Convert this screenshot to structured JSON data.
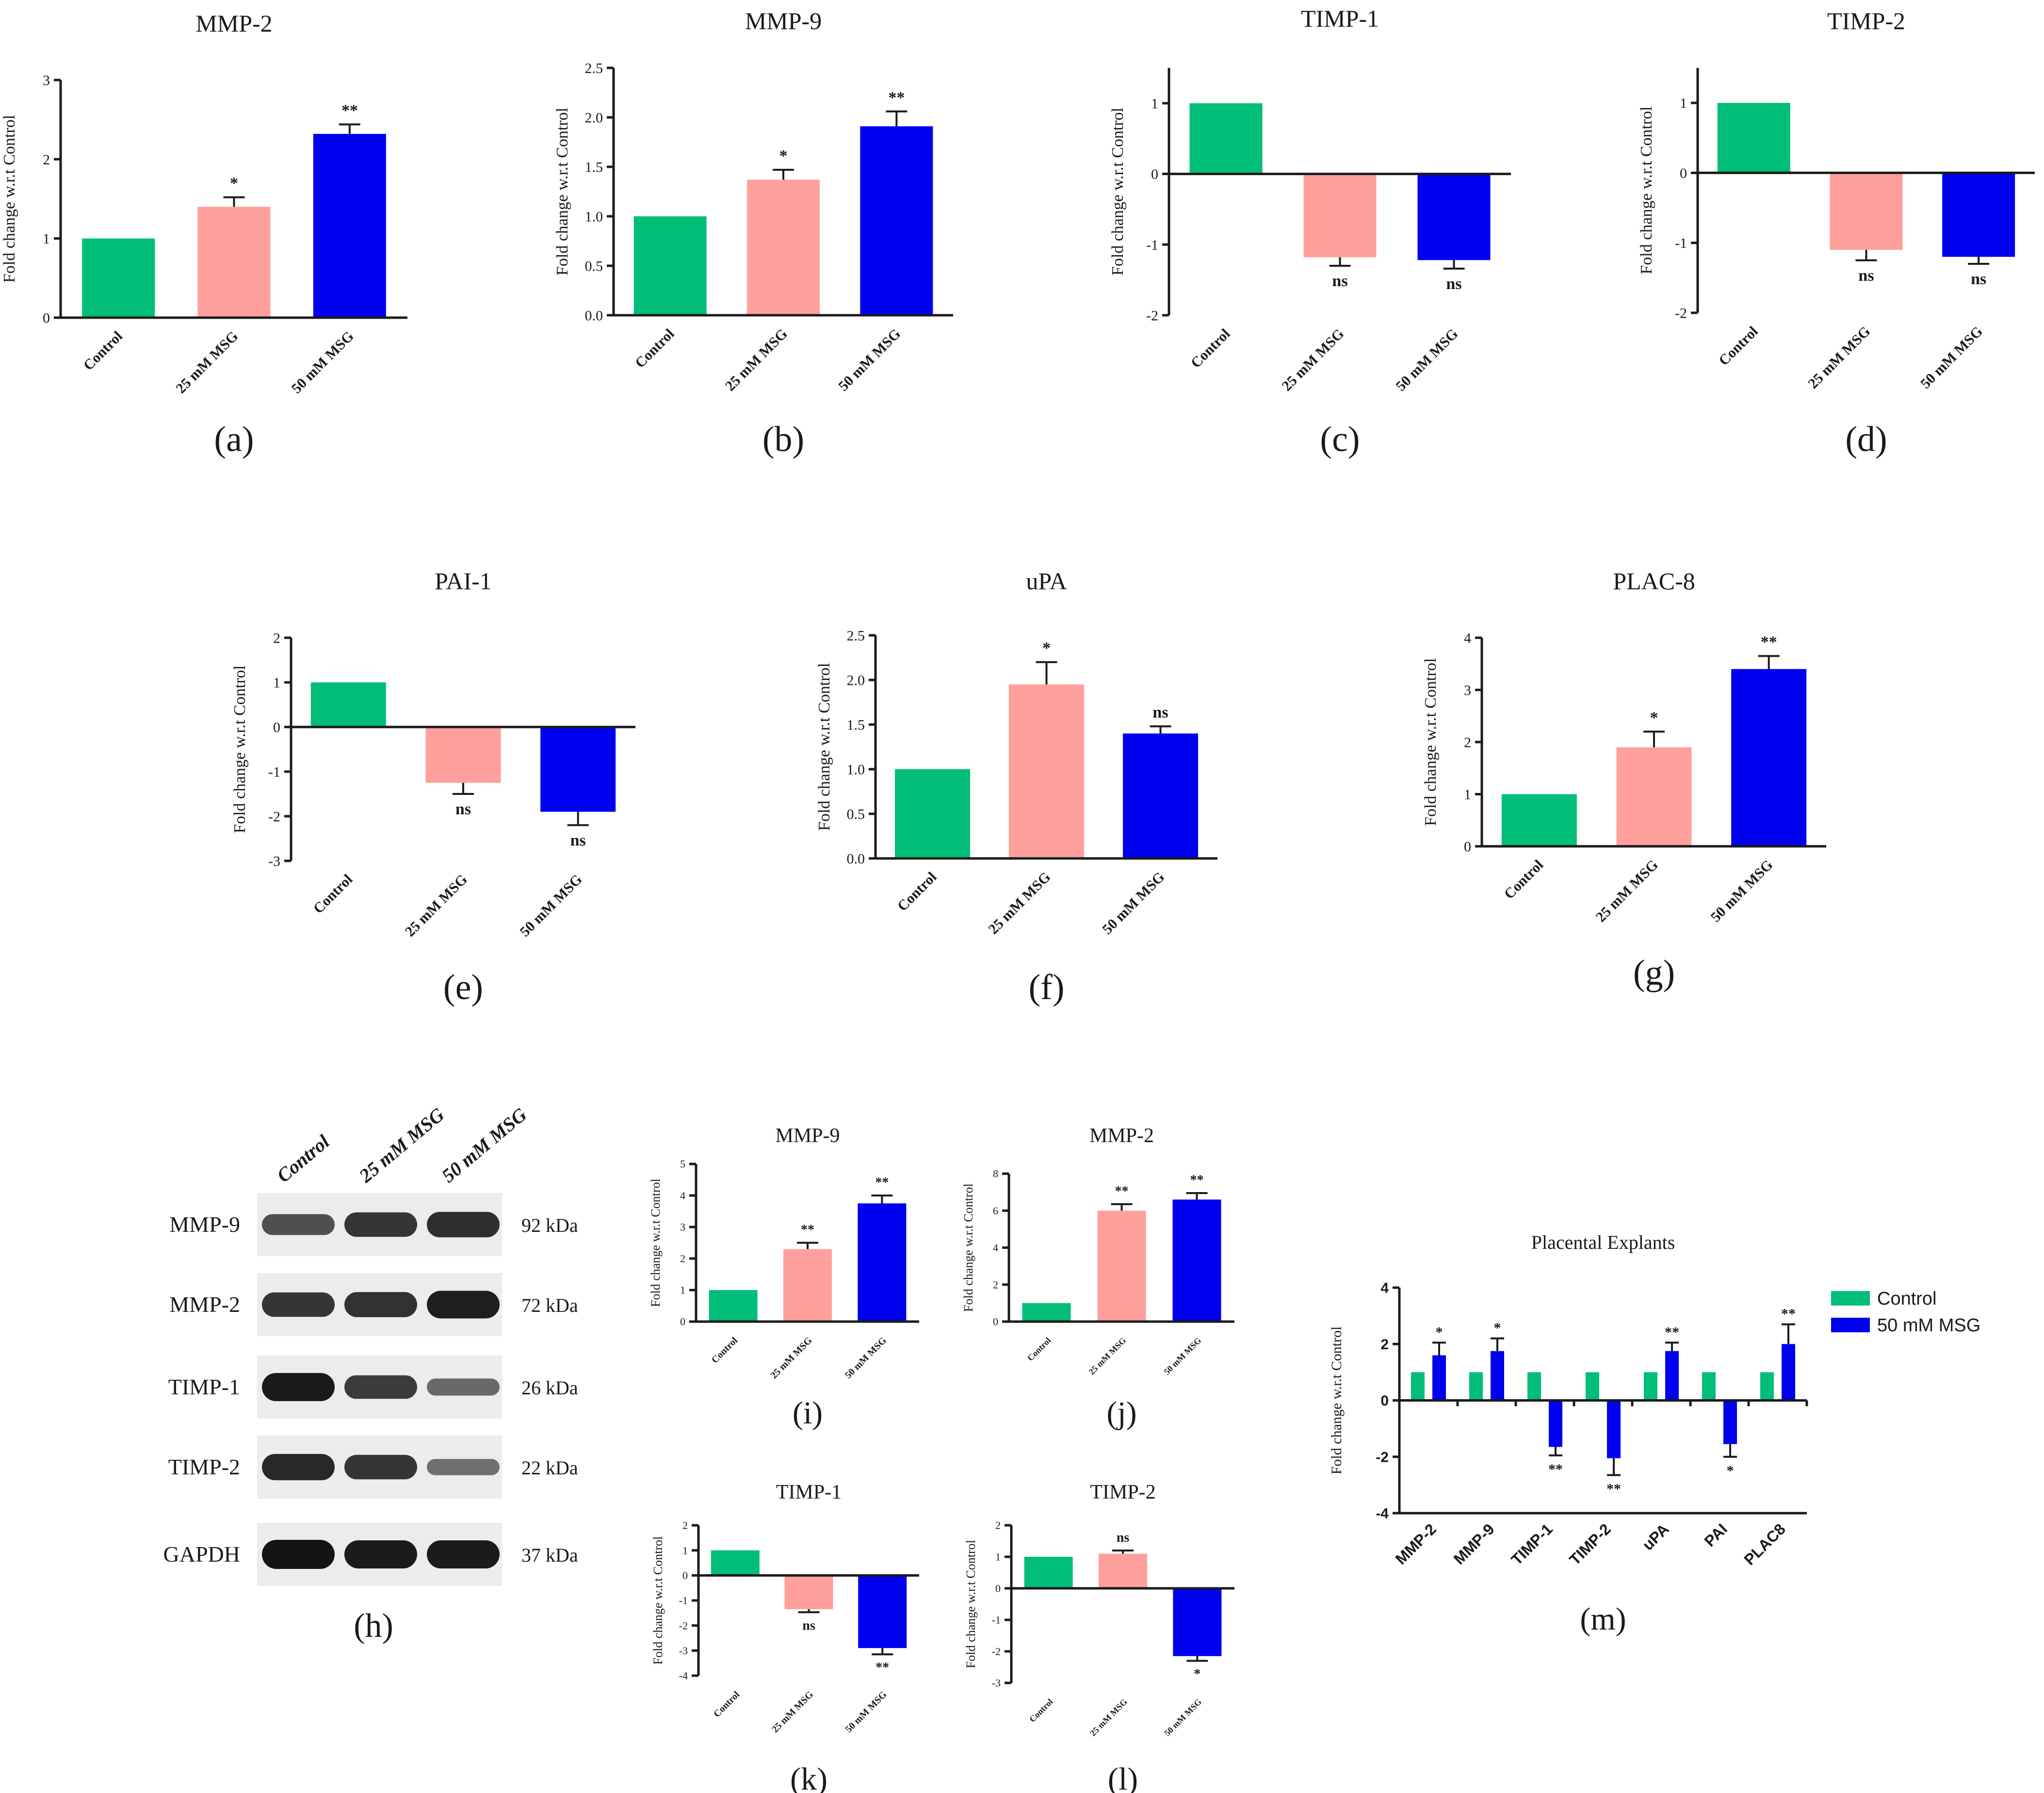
{
  "colors": {
    "control": "#00BE78",
    "msg25": "#FFA09C",
    "msg50": "#0000F0",
    "band": "#2a2a2a",
    "text": "#1a1a1a"
  },
  "common": {
    "ylabel": "Fold change w.r.t Control",
    "categories": [
      "Control",
      "25 mM MSG",
      "50 mM MSG"
    ]
  },
  "chart_data": [
    {
      "id": "a",
      "panel_label": "(a)",
      "type": "bar",
      "title": "MMP-2",
      "ylabel": "Fold change w.r.t Control",
      "categories": [
        "Control",
        "25 mM MSG",
        "50 mM MSG"
      ],
      "values": [
        1.0,
        1.4,
        2.32
      ],
      "errors": [
        0,
        0.12,
        0.12
      ],
      "sig": [
        "",
        "*",
        "**"
      ],
      "ylim": [
        0,
        3
      ],
      "ticks": [
        "0",
        "1",
        "2",
        "3"
      ],
      "tick_values": [
        0,
        1,
        2,
        3
      ]
    },
    {
      "id": "b",
      "panel_label": "(b)",
      "type": "bar",
      "title": "MMP-9",
      "ylabel": "Fold change w.r.t Control",
      "categories": [
        "Control",
        "25 mM MSG",
        "50 mM MSG"
      ],
      "values": [
        1.0,
        1.37,
        1.91
      ],
      "errors": [
        0,
        0.1,
        0.15
      ],
      "sig": [
        "",
        "*",
        "**"
      ],
      "ylim": [
        0,
        2.5
      ],
      "ticks": [
        "0.0",
        "0.5",
        "1.0",
        "1.5",
        "2.0",
        "2.5"
      ],
      "tick_values": [
        0,
        0.5,
        1,
        1.5,
        2,
        2.5
      ]
    },
    {
      "id": "c",
      "panel_label": "(c)",
      "type": "bar",
      "title": "TIMP-1",
      "ylabel": "Fold change w.r.t Control",
      "categories": [
        "Control",
        "25 mM MSG",
        "50 mM MSG"
      ],
      "values": [
        1.0,
        -1.18,
        -1.22
      ],
      "errors": [
        0,
        0.12,
        0.12
      ],
      "sig": [
        "",
        "ns",
        "ns"
      ],
      "ylim": [
        -2,
        1.5
      ],
      "ticks": [
        "-2",
        "-1",
        "0",
        "1"
      ],
      "tick_values": [
        -2,
        -1,
        0,
        1
      ]
    },
    {
      "id": "d",
      "panel_label": "(d)",
      "type": "bar",
      "title": "TIMP-2",
      "ylabel": "Fold change w.r.t Control",
      "categories": [
        "Control",
        "25 mM MSG",
        "50 mM MSG"
      ],
      "values": [
        1.0,
        -1.1,
        -1.2
      ],
      "errors": [
        0,
        0.15,
        0.1
      ],
      "sig": [
        "",
        "ns",
        "ns"
      ],
      "ylim": [
        -2,
        1.5
      ],
      "ticks": [
        "-2",
        "-1",
        "0",
        "1"
      ],
      "tick_values": [
        -2,
        -1,
        0,
        1
      ]
    },
    {
      "id": "e",
      "panel_label": "(e)",
      "type": "bar",
      "title": "PAI-1",
      "ylabel": "Fold change w.r.t Control",
      "categories": [
        "Control",
        "25 mM MSG",
        "50 mM MSG"
      ],
      "values": [
        1.0,
        -1.25,
        -1.9
      ],
      "errors": [
        0,
        0.25,
        0.3
      ],
      "sig": [
        "",
        "ns",
        "ns"
      ],
      "ylim": [
        -3,
        2
      ],
      "ticks": [
        "-3",
        "-2",
        "-1",
        "0",
        "1",
        "2"
      ],
      "tick_values": [
        -3,
        -2,
        -1,
        0,
        1,
        2
      ]
    },
    {
      "id": "f",
      "panel_label": "(f)",
      "type": "bar",
      "title": "uPA",
      "ylabel": "Fold change w.r.t Control",
      "categories": [
        "Control",
        "25 mM MSG",
        "50 mM MSG"
      ],
      "values": [
        1.0,
        1.95,
        1.4
      ],
      "errors": [
        0,
        0.25,
        0.08
      ],
      "sig": [
        "",
        "*",
        "ns"
      ],
      "ylim": [
        0,
        2.5
      ],
      "ticks": [
        "0.0",
        "0.5",
        "1.0",
        "1.5",
        "2.0",
        "2.5"
      ],
      "tick_values": [
        0,
        0.5,
        1,
        1.5,
        2,
        2.5
      ]
    },
    {
      "id": "g",
      "panel_label": "(g)",
      "type": "bar",
      "title": "PLAC-8",
      "ylabel": "Fold change w.r.t Control",
      "categories": [
        "Control",
        "25 mM MSG",
        "50 mM MSG"
      ],
      "values": [
        1.0,
        1.9,
        3.4
      ],
      "errors": [
        0,
        0.3,
        0.25
      ],
      "sig": [
        "",
        "*",
        "**"
      ],
      "ylim": [
        0,
        4
      ],
      "ticks": [
        "0",
        "1",
        "2",
        "3",
        "4"
      ],
      "tick_values": [
        0,
        1,
        2,
        3,
        4
      ]
    },
    {
      "id": "i",
      "panel_label": "(i)",
      "type": "bar",
      "title": "MMP-9",
      "ylabel": "Fold change w.r.t Control",
      "categories": [
        "Control",
        "25 mM MSG",
        "50 mM MSG"
      ],
      "values": [
        1.0,
        2.3,
        3.75
      ],
      "errors": [
        0,
        0.2,
        0.25
      ],
      "sig": [
        "",
        "**",
        "**"
      ],
      "ylim": [
        0,
        5
      ],
      "ticks": [
        "0",
        "1",
        "2",
        "3",
        "4",
        "5"
      ],
      "tick_values": [
        0,
        1,
        2,
        3,
        4,
        5
      ]
    },
    {
      "id": "j",
      "panel_label": "(j)",
      "type": "bar",
      "title": "MMP-2",
      "ylabel": "Fold change w.r.t Control",
      "categories": [
        "Control",
        "25 mM MSG",
        "50 mM MSG"
      ],
      "values": [
        1.0,
        6.0,
        6.6
      ],
      "errors": [
        0,
        0.35,
        0.35
      ],
      "sig": [
        "",
        "**",
        "**"
      ],
      "ylim": [
        0,
        8
      ],
      "ticks": [
        "0",
        "2",
        "4",
        "6",
        "8"
      ],
      "tick_values": [
        0,
        2,
        4,
        6,
        8
      ]
    },
    {
      "id": "k",
      "panel_label": "(k)",
      "type": "bar",
      "title": "TIMP-1",
      "ylabel": "Fold change w.r.t Control",
      "categories": [
        "Control",
        "25 mM MSG",
        "50 mM MSG"
      ],
      "values": [
        1.0,
        -1.35,
        -2.9
      ],
      "errors": [
        0,
        0.12,
        0.25
      ],
      "sig": [
        "",
        "ns",
        "**"
      ],
      "ylim": [
        -4,
        2
      ],
      "ticks": [
        "-4",
        "-3",
        "-2",
        "-1",
        "0",
        "1",
        "2"
      ],
      "tick_values": [
        -4,
        -3,
        -2,
        -1,
        0,
        1,
        2
      ]
    },
    {
      "id": "l",
      "panel_label": "(l)",
      "type": "bar",
      "title": "TIMP-2",
      "ylabel": "Fold change w.r.t Control",
      "categories": [
        "Control",
        "25 mM MSG",
        "50 mM MSG"
      ],
      "values": [
        1.0,
        1.1,
        -2.15
      ],
      "errors": [
        0,
        0.1,
        0.15
      ],
      "sig": [
        "",
        "ns",
        "*"
      ],
      "ylim": [
        -3,
        2
      ],
      "ticks": [
        "-3",
        "-2",
        "-1",
        "0",
        "1",
        "2"
      ],
      "tick_values": [
        -3,
        -2,
        -1,
        0,
        1,
        2
      ]
    },
    {
      "id": "m",
      "panel_label": "(m)",
      "type": "bar",
      "title": "Placental Explants",
      "ylabel": "Fold change w.r.t Control",
      "categories": [
        "MMP-2",
        "MMP-9",
        "TIMP-1",
        "TIMP-2",
        "uPA",
        "PAI",
        "PLAC8"
      ],
      "series": [
        {
          "name": "Control",
          "values": [
            1,
            1,
            1,
            1,
            1,
            1,
            1
          ],
          "errors": [
            0,
            0,
            0,
            0,
            0,
            0,
            0
          ],
          "sig": [
            "",
            "",
            "",
            "",
            "",
            "",
            ""
          ]
        },
        {
          "name": "50 mM MSG",
          "values": [
            1.6,
            1.75,
            -1.65,
            -2.05,
            1.75,
            -1.55,
            2.0
          ],
          "errors": [
            0.45,
            0.45,
            0.3,
            0.6,
            0.3,
            0.45,
            0.7
          ],
          "sig": [
            "*",
            "*",
            "**",
            "**",
            "**",
            "*",
            "**"
          ]
        }
      ],
      "legend": "right",
      "ylim": [
        -4,
        4
      ],
      "ticks": [
        "-4",
        "-2",
        "0",
        "2",
        "4"
      ],
      "tick_values": [
        -4,
        -2,
        0,
        2,
        4
      ]
    }
  ],
  "western_blot": {
    "panel_label": "(h)",
    "lanes": [
      "Control",
      "25 mM MSG",
      "50 mM MSG"
    ],
    "rows": [
      {
        "protein": "MMP-9",
        "size": "92 kDa",
        "intensity": [
          0.55,
          0.75,
          0.8
        ]
      },
      {
        "protein": "MMP-2",
        "size": "72 kDa",
        "intensity": [
          0.75,
          0.78,
          0.92
        ]
      },
      {
        "protein": "TIMP-1",
        "size": "26 kDa",
        "intensity": [
          0.95,
          0.7,
          0.35
        ]
      },
      {
        "protein": "TIMP-2",
        "size": "22 kDa",
        "intensity": [
          0.85,
          0.75,
          0.3
        ]
      },
      {
        "protein": "GAPDH",
        "size": "37 kDa",
        "intensity": [
          1.0,
          0.95,
          0.95
        ]
      }
    ]
  }
}
